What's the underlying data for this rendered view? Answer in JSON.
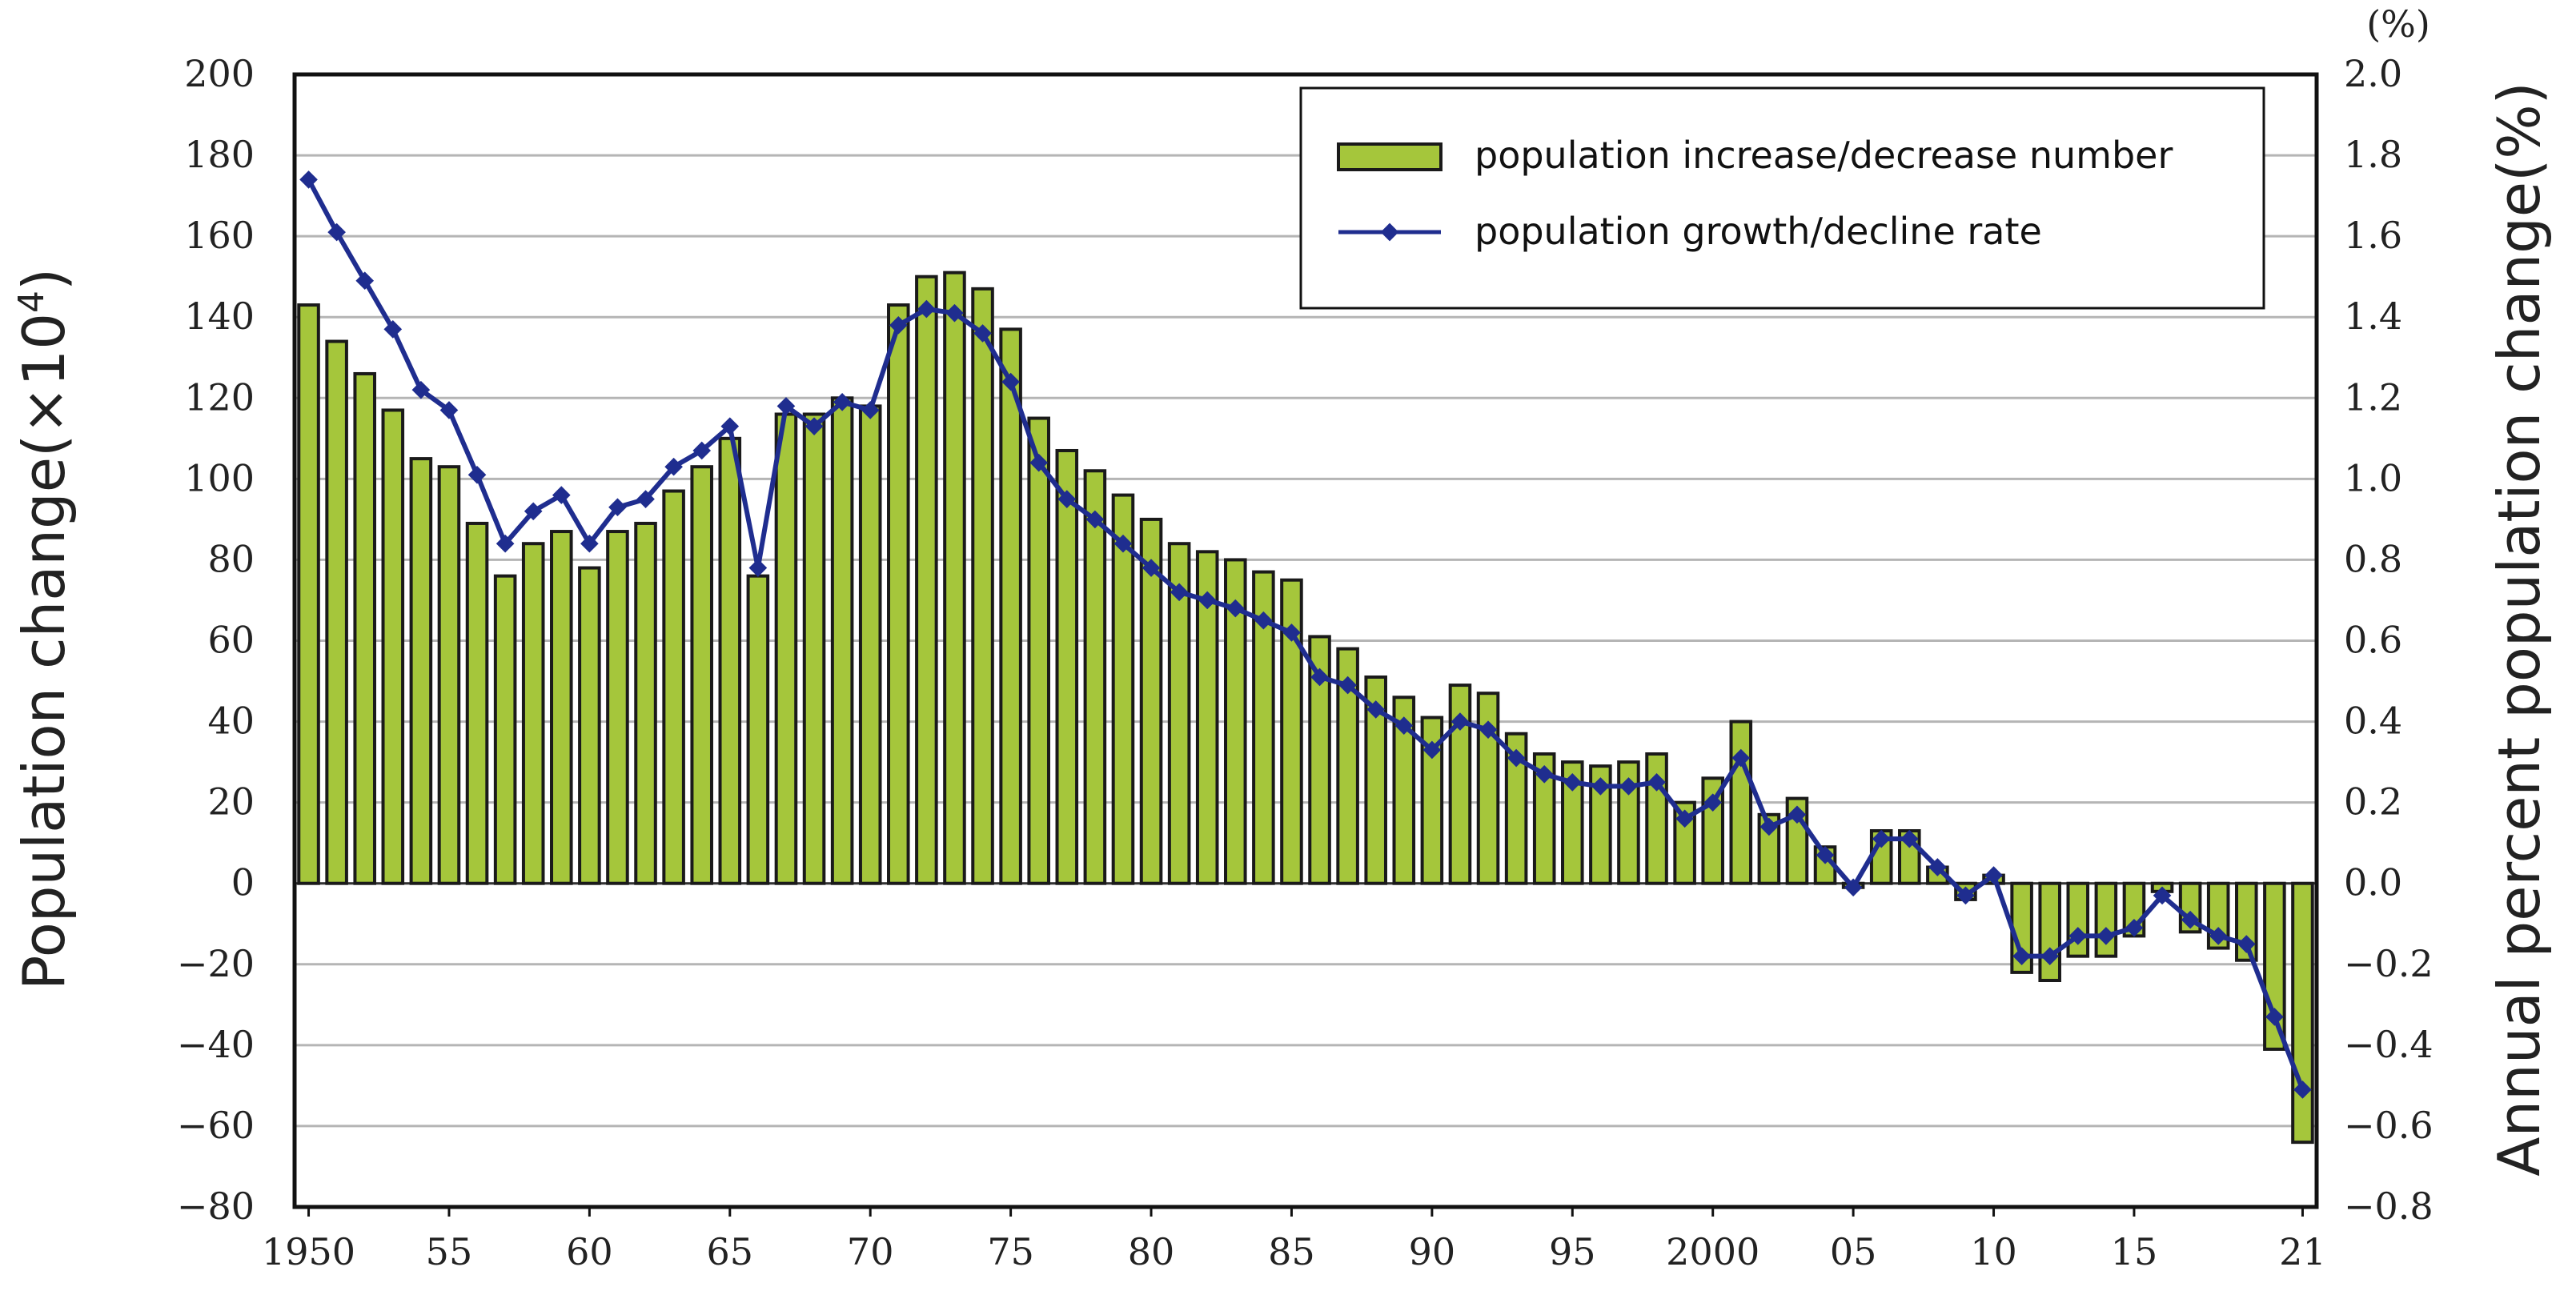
{
  "chart_data": {
    "type": "bar+line",
    "title": "",
    "left_axis": {
      "label": "Population change(×10",
      "label_superscript": "4",
      "label_close": ")",
      "ylim": [
        -80,
        200
      ],
      "ticks": [
        "200",
        "180",
        "160",
        "140",
        "120",
        "100",
        "80",
        "60",
        "40",
        "20",
        "0",
        "-20",
        "-40",
        "-60",
        "-80"
      ]
    },
    "right_axis": {
      "label": "Annual percent population change(%)",
      "unit_mark": "(%)",
      "ylim": [
        -0.8,
        2.0
      ],
      "ticks": [
        "2.0",
        "1.8",
        "1.6",
        "1.4",
        "1.2",
        "1.0",
        "0.8",
        "0.6",
        "0.4",
        "0.2",
        "0.0",
        "-0.2",
        "-0.4",
        "-0.6",
        "-0.8"
      ]
    },
    "x_tick_labels": [
      "1950",
      "55",
      "60",
      "65",
      "70",
      "75",
      "80",
      "85",
      "90",
      "95",
      "2000",
      "05",
      "10",
      "15",
      "21"
    ],
    "x_tick_years": [
      1950,
      1955,
      1960,
      1965,
      1970,
      1975,
      1980,
      1985,
      1990,
      1995,
      2000,
      2005,
      2010,
      2015,
      2021
    ],
    "grid": true,
    "legend": {
      "position": "top-right",
      "bar_label": "population increase/decrease number",
      "line_label": "population growth/decline rate"
    },
    "colors": {
      "bar_fill": "#a5c63b",
      "bar_stroke": "#1a1a1a",
      "line": "#1f2d8f",
      "grid": "#b5b5b5"
    },
    "years": [
      1950,
      1951,
      1952,
      1953,
      1954,
      1955,
      1956,
      1957,
      1958,
      1959,
      1960,
      1961,
      1962,
      1963,
      1964,
      1965,
      1966,
      1967,
      1968,
      1969,
      1970,
      1971,
      1972,
      1973,
      1974,
      1975,
      1976,
      1977,
      1978,
      1979,
      1980,
      1981,
      1982,
      1983,
      1984,
      1985,
      1986,
      1987,
      1988,
      1989,
      1990,
      1991,
      1992,
      1993,
      1994,
      1995,
      1996,
      1997,
      1998,
      1999,
      2000,
      2001,
      2002,
      2003,
      2004,
      2005,
      2006,
      2007,
      2008,
      2009,
      2010,
      2011,
      2012,
      2013,
      2014,
      2015,
      2016,
      2017,
      2018,
      2019,
      2020,
      2021
    ],
    "series": [
      {
        "name": "population increase/decrease number",
        "type": "bar",
        "axis": "left",
        "values": [
          143,
          134,
          126,
          117,
          105,
          103,
          89,
          76,
          84,
          87,
          78,
          87,
          89,
          97,
          103,
          110,
          76,
          116,
          116,
          120,
          118,
          143,
          150,
          151,
          147,
          137,
          115,
          107,
          102,
          96,
          90,
          84,
          82,
          80,
          77,
          75,
          61,
          58,
          51,
          46,
          41,
          49,
          47,
          37,
          32,
          30,
          29,
          30,
          32,
          20,
          26,
          40,
          17,
          21,
          9,
          -1,
          13,
          13,
          4,
          -4,
          2,
          -22,
          -24,
          -18,
          -18,
          -13,
          -2,
          -12,
          -16,
          -19,
          -41,
          -64
        ]
      },
      {
        "name": "population growth/decline rate",
        "type": "line",
        "axis": "right",
        "values": [
          1.74,
          1.61,
          1.49,
          1.37,
          1.22,
          1.17,
          1.01,
          0.84,
          0.92,
          0.96,
          0.84,
          0.93,
          0.95,
          1.03,
          1.07,
          1.13,
          0.78,
          1.18,
          1.13,
          1.19,
          1.17,
          1.38,
          1.42,
          1.41,
          1.36,
          1.24,
          1.04,
          0.95,
          0.9,
          0.84,
          0.78,
          0.72,
          0.7,
          0.68,
          0.65,
          0.62,
          0.51,
          0.49,
          0.43,
          0.39,
          0.33,
          0.4,
          0.38,
          0.31,
          0.27,
          0.25,
          0.24,
          0.24,
          0.25,
          0.16,
          0.2,
          0.31,
          0.14,
          0.17,
          0.07,
          -0.01,
          0.11,
          0.11,
          0.04,
          -0.03,
          0.02,
          -0.18,
          -0.18,
          -0.13,
          -0.13,
          -0.11,
          -0.03,
          -0.09,
          -0.13,
          -0.15,
          -0.33,
          -0.51
        ]
      }
    ]
  }
}
